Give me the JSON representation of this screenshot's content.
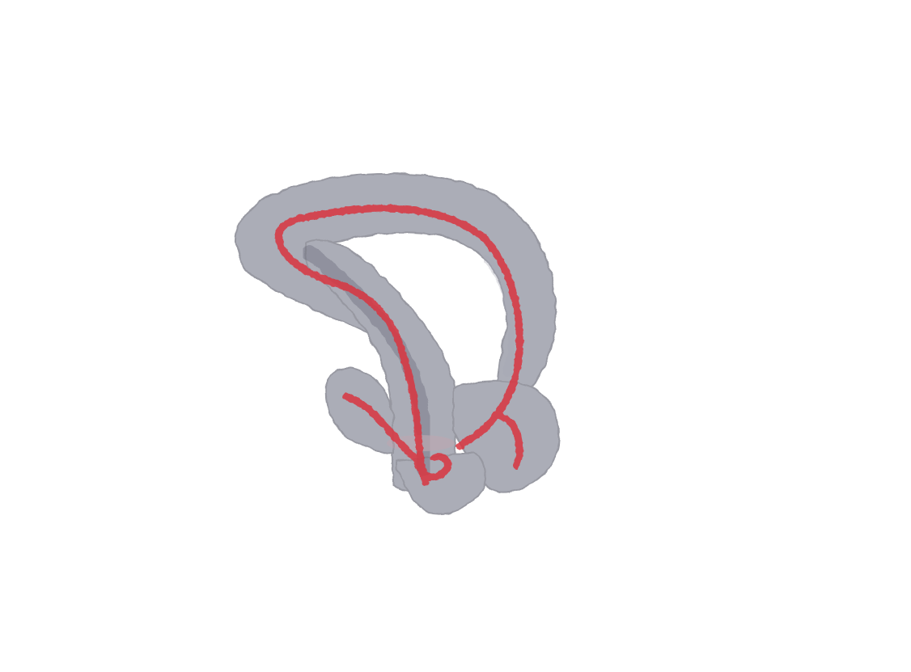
{
  "scene": {
    "background_color": "#ffffff",
    "surface": {
      "name": "translucent-mesh",
      "fill_color": "#8c8e9c",
      "edge_color": "#6f717e",
      "opacity": 0.72
    },
    "centerline": {
      "name": "skeleton-centerline",
      "color": "#d9343f",
      "opacity": 0.85
    }
  }
}
